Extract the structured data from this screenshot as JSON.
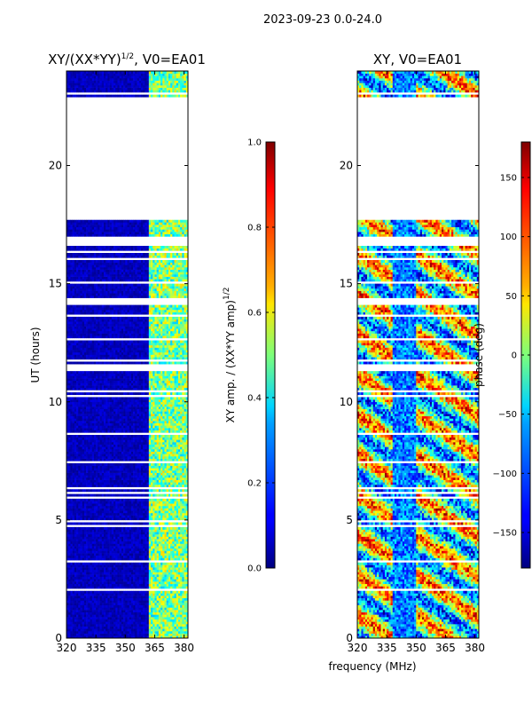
{
  "suptitle": "2023-09-23 0.0-24.0",
  "colors": {
    "background": "#ffffff",
    "axis": "#000000"
  },
  "chart_data": [
    {
      "type": "heatmap",
      "title_main": "XY/(XX*YY)",
      "title_exp": "1/2",
      "title_rest": ", V0=EA01",
      "xlabel": "",
      "ylabel": "UT (hours)",
      "x_range": [
        320,
        382
      ],
      "y_range": [
        0,
        24
      ],
      "xticks": [
        320,
        335,
        350,
        365,
        380
      ],
      "yticks": [
        0,
        5,
        10,
        15,
        20
      ],
      "colormap": "jet",
      "colorbar": {
        "range": [
          0.0,
          1.0
        ],
        "ticks": [
          "0.0",
          "0.2",
          "0.4",
          "0.6",
          "0.8",
          "1.0"
        ],
        "label_main": "XY amp. / (XX*YY amp)",
        "label_exp": "1/2"
      },
      "data_bands_hours": [
        [
          0.0,
          3.6
        ],
        [
          3.6,
          4.9
        ],
        [
          4.9,
          11.3
        ],
        [
          11.6,
          14.1
        ],
        [
          14.4,
          17.7
        ],
        [
          22.9,
          24.0
        ]
      ],
      "empty_hours": [
        [
          17.8,
          22.9
        ]
      ],
      "low_amp_regions_mhz": [
        [
          320,
          362
        ]
      ],
      "high_amp_regions_mhz": [
        [
          362,
          382
        ]
      ]
    },
    {
      "type": "heatmap",
      "title_main": "XY, V0=EA01",
      "xlabel": "frequency (MHz)",
      "ylabel": "",
      "x_range": [
        320,
        382
      ],
      "y_range": [
        0,
        24
      ],
      "xticks": [
        320,
        335,
        350,
        365,
        380
      ],
      "yticks": [
        0,
        5,
        10,
        15,
        20
      ],
      "colormap": "jet",
      "colorbar": {
        "range": [
          -180,
          180
        ],
        "ticks": [
          "−150",
          "−100",
          "−50",
          "0",
          "50",
          "100",
          "150"
        ],
        "label_main": "phase (deg)"
      },
      "data_bands_hours": [
        [
          0.0,
          3.6
        ],
        [
          3.6,
          4.9
        ],
        [
          4.9,
          11.3
        ],
        [
          11.6,
          14.1
        ],
        [
          14.4,
          17.7
        ],
        [
          22.9,
          24.0
        ]
      ],
      "empty_hours": [
        [
          17.8,
          22.9
        ]
      ]
    }
  ]
}
